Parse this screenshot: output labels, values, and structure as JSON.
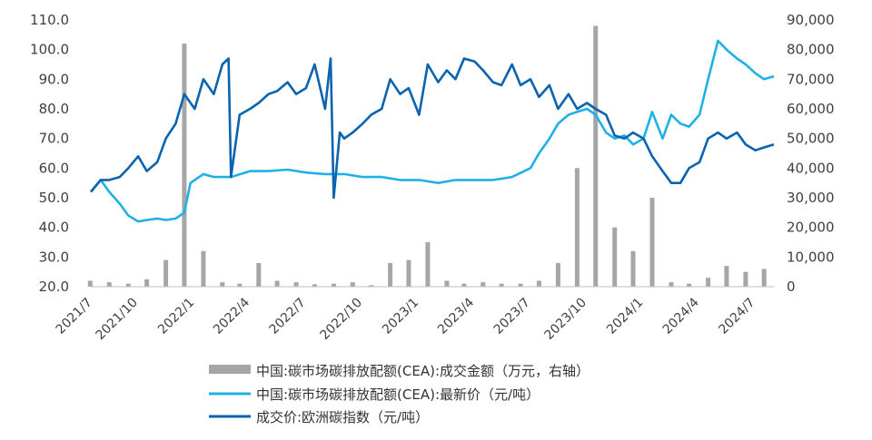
{
  "chart_data": {
    "type": "line",
    "title": "",
    "xlabel": "",
    "ylabel": "",
    "x_range": [
      "2021-07-16",
      "2024-07-31"
    ],
    "x_tick_labels": [
      "2021/7",
      "2021/10",
      "2022/1",
      "2022/4",
      "2022/7",
      "2022/10",
      "2023/1",
      "2023/4",
      "2023/7",
      "2023/10",
      "2024/1",
      "2024/4",
      "2024/7"
    ],
    "y_left": {
      "ylim": [
        20,
        110
      ],
      "tick_labels": [
        "20.0",
        "30.0",
        "40.0",
        "50.0",
        "60.0",
        "70.0",
        "80.0",
        "90.0",
        "100.0",
        "110.0"
      ]
    },
    "y_right": {
      "ylim": [
        0,
        90000
      ],
      "tick_labels": [
        "0",
        "10,000",
        "20,000",
        "30,000",
        "40,000",
        "50,000",
        "60,000",
        "70,000",
        "80,000",
        "90,000"
      ]
    },
    "grid": false,
    "legend": {
      "position": "bottom"
    },
    "series": [
      {
        "name": "中国:碳市场碳排放配额(CEA):成交金额（万元，右轴）",
        "type": "bar",
        "axis": "right",
        "color": "#a6a6a6",
        "x": [
          "2021-07",
          "2021-08",
          "2021-09",
          "2021-10",
          "2021-11",
          "2021-12",
          "2022-01",
          "2022-02",
          "2022-03",
          "2022-04",
          "2022-05",
          "2022-06",
          "2022-07",
          "2022-08",
          "2022-09",
          "2022-10",
          "2022-11",
          "2022-12",
          "2023-01",
          "2023-02",
          "2023-03",
          "2023-04",
          "2023-05",
          "2023-06",
          "2023-07",
          "2023-08",
          "2023-09",
          "2023-10",
          "2023-11",
          "2023-12",
          "2024-01",
          "2024-02",
          "2024-03",
          "2024-04",
          "2024-05",
          "2024-06",
          "2024-07"
        ],
        "values": [
          2000,
          1500,
          1000,
          2500,
          9000,
          82000,
          12000,
          1500,
          1000,
          8000,
          2000,
          1500,
          800,
          1000,
          1500,
          500,
          8000,
          9000,
          15000,
          2000,
          1000,
          1500,
          1000,
          1000,
          2000,
          8000,
          40000,
          88000,
          20000,
          12000,
          30000,
          1500,
          1000,
          3000,
          7000,
          5000,
          6000
        ]
      },
      {
        "name": "中国:碳市场碳排放配额(CEA):最新价（元/吨）",
        "type": "line",
        "axis": "left",
        "color": "#1fb1e6",
        "x": [
          "2021-07-16",
          "2021-08-01",
          "2021-08-15",
          "2021-09-01",
          "2021-09-15",
          "2021-10-01",
          "2021-10-15",
          "2021-11-01",
          "2021-11-15",
          "2021-12-01",
          "2021-12-15",
          "2021-12-25",
          "2022-01-01",
          "2022-01-15",
          "2022-02-01",
          "2022-03-01",
          "2022-04-01",
          "2022-05-01",
          "2022-06-01",
          "2022-07-01",
          "2022-08-01",
          "2022-09-01",
          "2022-10-01",
          "2022-11-01",
          "2022-12-01",
          "2023-01-01",
          "2023-02-01",
          "2023-03-01",
          "2023-04-01",
          "2023-05-01",
          "2023-06-01",
          "2023-07-01",
          "2023-07-15",
          "2023-08-01",
          "2023-08-15",
          "2023-09-01",
          "2023-09-15",
          "2023-10-01",
          "2023-10-15",
          "2023-11-01",
          "2023-11-15",
          "2023-12-01",
          "2023-12-15",
          "2024-01-01",
          "2024-01-15",
          "2024-02-01",
          "2024-02-15",
          "2024-03-01",
          "2024-03-15",
          "2024-04-01",
          "2024-04-15",
          "2024-05-01",
          "2024-05-15",
          "2024-06-01",
          "2024-06-15",
          "2024-07-01",
          "2024-07-15",
          "2024-07-31"
        ],
        "values": [
          52,
          56,
          52,
          48,
          44,
          42,
          42.5,
          43,
          42.5,
          43,
          45,
          55,
          56,
          58,
          57,
          57,
          59,
          59,
          59.5,
          58.5,
          58,
          58,
          57,
          57,
          56,
          56,
          55,
          56,
          56,
          56,
          57,
          60,
          65,
          70,
          75,
          78,
          79,
          80,
          78,
          72,
          70,
          71,
          68,
          70,
          79,
          70,
          78,
          75,
          74,
          78,
          90,
          103,
          100,
          97,
          95,
          92,
          90,
          91
        ]
      },
      {
        "name": "成交价:欧洲碳指数（元/吨）",
        "type": "line",
        "axis": "left",
        "color": "#0a63b0",
        "x": [
          "2021-07-16",
          "2021-08-01",
          "2021-08-15",
          "2021-09-01",
          "2021-09-15",
          "2021-10-01",
          "2021-10-15",
          "2021-11-01",
          "2021-11-15",
          "2021-12-01",
          "2021-12-15",
          "2022-01-01",
          "2022-01-15",
          "2022-02-01",
          "2022-02-15",
          "2022-02-25",
          "2022-03-01",
          "2022-03-15",
          "2022-04-01",
          "2022-04-15",
          "2022-05-01",
          "2022-05-15",
          "2022-06-01",
          "2022-06-15",
          "2022-07-01",
          "2022-07-15",
          "2022-08-01",
          "2022-08-10",
          "2022-08-15",
          "2022-08-25",
          "2022-09-01",
          "2022-09-15",
          "2022-10-01",
          "2022-10-15",
          "2022-11-01",
          "2022-11-15",
          "2022-12-01",
          "2022-12-15",
          "2023-01-01",
          "2023-01-15",
          "2023-02-01",
          "2023-02-15",
          "2023-03-01",
          "2023-03-15",
          "2023-04-01",
          "2023-04-15",
          "2023-05-01",
          "2023-05-15",
          "2023-06-01",
          "2023-06-15",
          "2023-07-01",
          "2023-07-15",
          "2023-08-01",
          "2023-08-15",
          "2023-09-01",
          "2023-09-15",
          "2023-10-01",
          "2023-10-15",
          "2023-11-01",
          "2023-11-15",
          "2023-12-01",
          "2023-12-15",
          "2024-01-01",
          "2024-01-15",
          "2024-02-01",
          "2024-02-15",
          "2024-03-01",
          "2024-03-15",
          "2024-04-01",
          "2024-04-15",
          "2024-05-01",
          "2024-05-15",
          "2024-06-01",
          "2024-06-15",
          "2024-07-01",
          "2024-07-15",
          "2024-07-31"
        ],
        "values": [
          52,
          56,
          56,
          57,
          60,
          64,
          59,
          62,
          70,
          75,
          85,
          80,
          90,
          85,
          95,
          97,
          57,
          78,
          80,
          82,
          85,
          86,
          89,
          85,
          87,
          95,
          80,
          97,
          50,
          72,
          70,
          72,
          75,
          78,
          80,
          90,
          85,
          87,
          78,
          95,
          89,
          93,
          90,
          97,
          96,
          93,
          89,
          88,
          95,
          88,
          90,
          84,
          88,
          80,
          85,
          80,
          82,
          80,
          78,
          71,
          70,
          72,
          70,
          64,
          59,
          55,
          55,
          60,
          62,
          70,
          72,
          70,
          72,
          68,
          66,
          67,
          68
        ]
      }
    ]
  }
}
